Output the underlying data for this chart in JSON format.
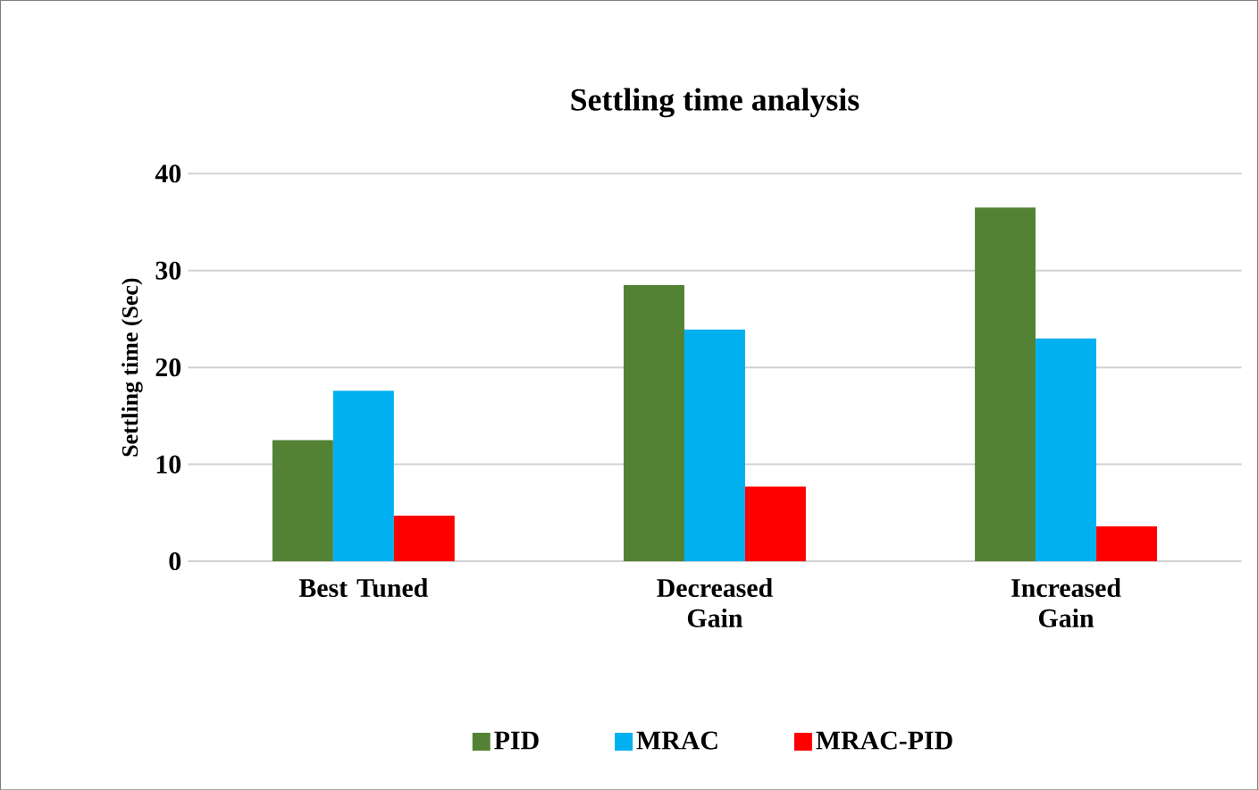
{
  "chart_data": {
    "type": "bar",
    "title": "Settling time analysis",
    "ylabel": "Settling time (Sec)",
    "categories": [
      "Best Tuned",
      "Decreased Gain",
      "Increased Gain"
    ],
    "series": [
      {
        "name": "PID",
        "color": "#548235",
        "values": [
          12.5,
          28.5,
          36.5
        ]
      },
      {
        "name": "MRAC",
        "color": "#00b0f0",
        "values": [
          17.6,
          23.9,
          23
        ]
      },
      {
        "name": "MRAC-PID",
        "color": "#ff0000",
        "values": [
          4.7,
          7.7,
          3.6
        ]
      }
    ],
    "ylim": [
      0,
      40
    ],
    "yticks": [
      0,
      10,
      20,
      30,
      40
    ],
    "grid": "y",
    "legend": "bottom"
  }
}
